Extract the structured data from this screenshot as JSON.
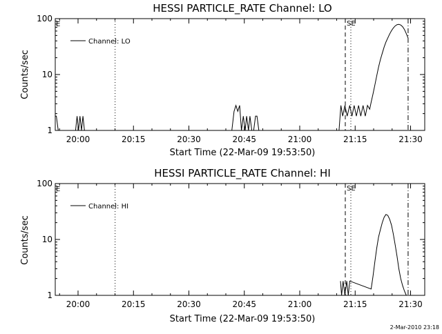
{
  "footer": {
    "date_stamp": "2-Mar-2010 23:18"
  },
  "chart_data": [
    {
      "type": "line",
      "title": "HESSI PARTICLE_RATE Channel: LO",
      "xlabel": "Start Time (22-Mar-09 19:53:50)",
      "ylabel": "Counts/sec",
      "y_scale": "log",
      "ylim": [
        1,
        100
      ],
      "xlim_min": [
        0,
        100
      ],
      "x_ticks": [
        6.17,
        21.17,
        36.17,
        51.17,
        66.17,
        81.17,
        96.17
      ],
      "x_tick_labels": [
        "20:00",
        "20:15",
        "20:30",
        "20:45",
        "21:00",
        "21:15",
        "21:30"
      ],
      "y_ticks": [
        1,
        10,
        100
      ],
      "y_tick_labels": [
        "1",
        "10",
        "100"
      ],
      "legend": {
        "label": "Channel: LO",
        "placement": "top-left"
      },
      "marker_labels": {
        "eclipse": "E",
        "saa": "SE"
      },
      "vlines": [
        {
          "x": 16.2,
          "style": "dotted"
        },
        {
          "x": 78.5,
          "style": "dashed"
        },
        {
          "x": 80.0,
          "style": "dotted"
        },
        {
          "x": 95.5,
          "style": "dashdot"
        }
      ],
      "series": [
        {
          "name": "Channel: LO",
          "x": [
            0.0,
            0.3,
            0.8,
            1.2,
            5.5,
            5.9,
            6.3,
            6.7,
            7.1,
            7.5,
            7.9,
            8.3,
            47.8,
            48.4,
            48.9,
            49.4,
            49.9,
            50.4,
            50.9,
            51.4,
            51.8,
            52.3,
            52.7,
            53.2,
            53.7,
            54.2,
            54.6,
            55.1,
            76.8,
            77.3,
            77.8,
            78.4,
            79.0,
            79.7,
            80.3,
            80.9,
            81.5,
            82.1,
            82.7,
            83.3,
            83.9,
            84.5,
            85.1,
            85.5,
            86.0,
            86.5,
            87.0,
            87.5,
            88.0,
            88.5,
            89.0,
            89.5,
            90.0,
            90.5,
            91.0,
            91.5,
            92.0,
            92.5,
            93.0,
            93.5,
            94.0,
            94.5,
            95.0,
            95.5
          ],
          "y": [
            1.8,
            1.8,
            1,
            1,
            1,
            1.8,
            1,
            1.8,
            1,
            1.8,
            1,
            1,
            1,
            2.2,
            2.8,
            2.2,
            2.8,
            1,
            1.8,
            1,
            1.8,
            1,
            1.8,
            1,
            1,
            1.8,
            1.8,
            1,
            1,
            2.8,
            1.8,
            2.8,
            1.8,
            2.8,
            1.8,
            2.8,
            1.8,
            2.8,
            1.8,
            2.8,
            1.8,
            2.8,
            2.4,
            3.2,
            4.5,
            6.5,
            9.5,
            13.5,
            18.5,
            24,
            31,
            38,
            45,
            53,
            61,
            68,
            74,
            78,
            79,
            77,
            72,
            64,
            54,
            45
          ]
        }
      ]
    },
    {
      "type": "line",
      "title": "HESSI PARTICLE_RATE Channel: HI",
      "xlabel": "Start Time (22-Mar-09 19:53:50)",
      "ylabel": "Counts/sec",
      "y_scale": "log",
      "ylim": [
        1,
        100
      ],
      "xlim_min": [
        0,
        100
      ],
      "x_ticks": [
        6.17,
        21.17,
        36.17,
        51.17,
        66.17,
        81.17,
        96.17
      ],
      "x_tick_labels": [
        "20:00",
        "20:15",
        "20:30",
        "20:45",
        "21:00",
        "21:15",
        "21:30"
      ],
      "y_ticks": [
        1,
        10,
        100
      ],
      "y_tick_labels": [
        "1",
        "10",
        "100"
      ],
      "legend": {
        "label": "Channel: HI",
        "placement": "top-left"
      },
      "marker_labels": {
        "eclipse": "E",
        "saa": "SE"
      },
      "vlines": [
        {
          "x": 16.2,
          "style": "dotted"
        },
        {
          "x": 78.5,
          "style": "dashed"
        },
        {
          "x": 80.0,
          "style": "dotted"
        },
        {
          "x": 95.5,
          "style": "dashdot"
        }
      ],
      "series": [
        {
          "name": "Channel: HI",
          "x": [
            77.2,
            77.5,
            77.9,
            78.4,
            78.9,
            79.3,
            79.7,
            85.5,
            86.0,
            86.5,
            87.0,
            87.5,
            88.0,
            88.5,
            89.0,
            89.5,
            90.0,
            90.5,
            91.0,
            91.5,
            92.0,
            92.5,
            93.0,
            93.5,
            94.0,
            94.5,
            95.0
          ],
          "y": [
            1.8,
            1,
            1.8,
            1,
            1.8,
            1,
            1.8,
            1.3,
            2.2,
            4,
            7,
            11,
            15,
            20,
            25,
            28,
            27,
            23,
            18,
            12.5,
            8,
            5,
            3,
            2,
            1.5,
            1.2,
            1
          ]
        }
      ]
    }
  ]
}
